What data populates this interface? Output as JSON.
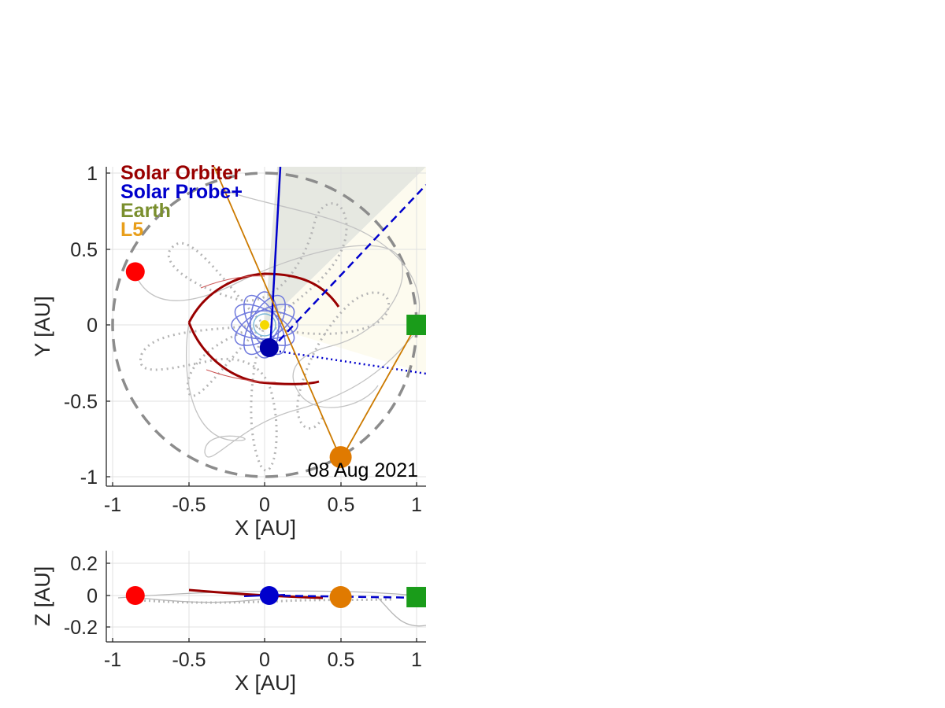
{
  "colors": {
    "solo": "#990000",
    "psp": "#0000cc",
    "psp_light": "#6f79dd",
    "earth": "#7a8f2e",
    "l5": "#e89e1a",
    "l5_marker": "#e07a00",
    "earth_marker": "#1a9c1a",
    "orbit_grey": "#bdbdbd",
    "sun": "#f5d800",
    "wedge_grey": "#e6e8e1",
    "wedge_cream": "#fdfbef"
  },
  "chart_data": [
    {
      "type": "scatter",
      "panel": "top",
      "view": "ecliptic plane (X-Y)",
      "xlabel": "X [AU]",
      "ylabel": "Y [AU]",
      "xlim": [
        -1.05,
        1.05
      ],
      "ylim": [
        -1.05,
        1.05
      ],
      "xticks": [
        -1,
        -0.5,
        0,
        0.5,
        1
      ],
      "xtick_labels": [
        "-1",
        "-0.5",
        "0",
        "0.5",
        "1"
      ],
      "yticks": [
        1,
        0.5,
        0,
        -0.5,
        -1
      ],
      "ytick_labels": [
        "1",
        "0.5",
        "0",
        "-0.5",
        "-1"
      ],
      "grid": true,
      "date": "08 Aug 2021",
      "legend_position": "top-left",
      "legend": [
        {
          "label": "Solar Orbiter",
          "color": "#990000"
        },
        {
          "label": "Solar Probe+",
          "color": "#0000cc"
        },
        {
          "label": "Earth",
          "color": "#7a8f2e"
        },
        {
          "label": "L5",
          "color": "#e89e1a"
        }
      ],
      "bodies": [
        {
          "name": "Sun",
          "x": 0.0,
          "y": 0.0,
          "shape": "circle"
        },
        {
          "name": "Solar Orbiter",
          "x": -0.85,
          "y": 0.35,
          "shape": "circle",
          "color": "#ff0000"
        },
        {
          "name": "Solar Probe+",
          "x": 0.03,
          "y": -0.15,
          "shape": "circle",
          "color": "#0000aa"
        },
        {
          "name": "Earth",
          "x": 1.0,
          "y": 0.0,
          "shape": "square",
          "color": "#1a9c1a"
        },
        {
          "name": "L5",
          "x": 0.5,
          "y": -0.87,
          "shape": "circle",
          "color": "#e07a00"
        }
      ],
      "reference_circle_radius": 1.0
    },
    {
      "type": "scatter",
      "panel": "bottom",
      "view": "side (X-Z)",
      "xlabel": "X [AU]",
      "ylabel": "Z [AU]",
      "xlim": [
        -1.05,
        1.05
      ],
      "ylim": [
        -0.3,
        0.3
      ],
      "xticks": [
        -1,
        -0.5,
        0,
        0.5,
        1
      ],
      "xtick_labels": [
        "-1",
        "-0.5",
        "0",
        "0.5",
        "1"
      ],
      "yticks": [
        0.2,
        0,
        -0.2
      ],
      "ytick_labels": [
        "0.2",
        "0",
        "-0.2"
      ],
      "grid": true,
      "bodies": [
        {
          "name": "Solar Orbiter",
          "x": -0.85,
          "z": 0.0,
          "shape": "circle",
          "color": "#ff0000"
        },
        {
          "name": "Solar Probe+",
          "x": 0.03,
          "z": 0.0,
          "shape": "circle",
          "color": "#0000cc"
        },
        {
          "name": "L5",
          "x": 0.5,
          "z": -0.01,
          "shape": "circle",
          "color": "#e07a00"
        },
        {
          "name": "Earth",
          "x": 1.0,
          "z": -0.01,
          "shape": "square",
          "color": "#1a9c1a"
        }
      ]
    }
  ]
}
